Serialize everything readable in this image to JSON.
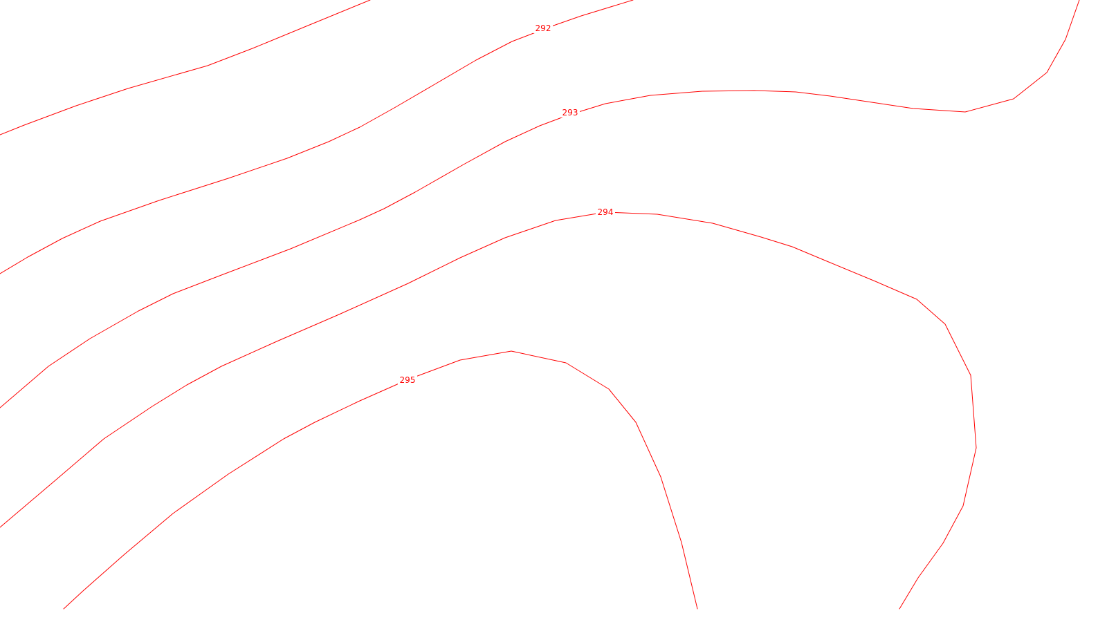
{
  "map": {
    "background_color": "#ffffff",
    "line_color": "#ff0000",
    "contour_labels": [
      {
        "elevation": "292"
      },
      {
        "elevation": "293"
      },
      {
        "elevation": "294"
      },
      {
        "elevation": "295"
      }
    ]
  }
}
